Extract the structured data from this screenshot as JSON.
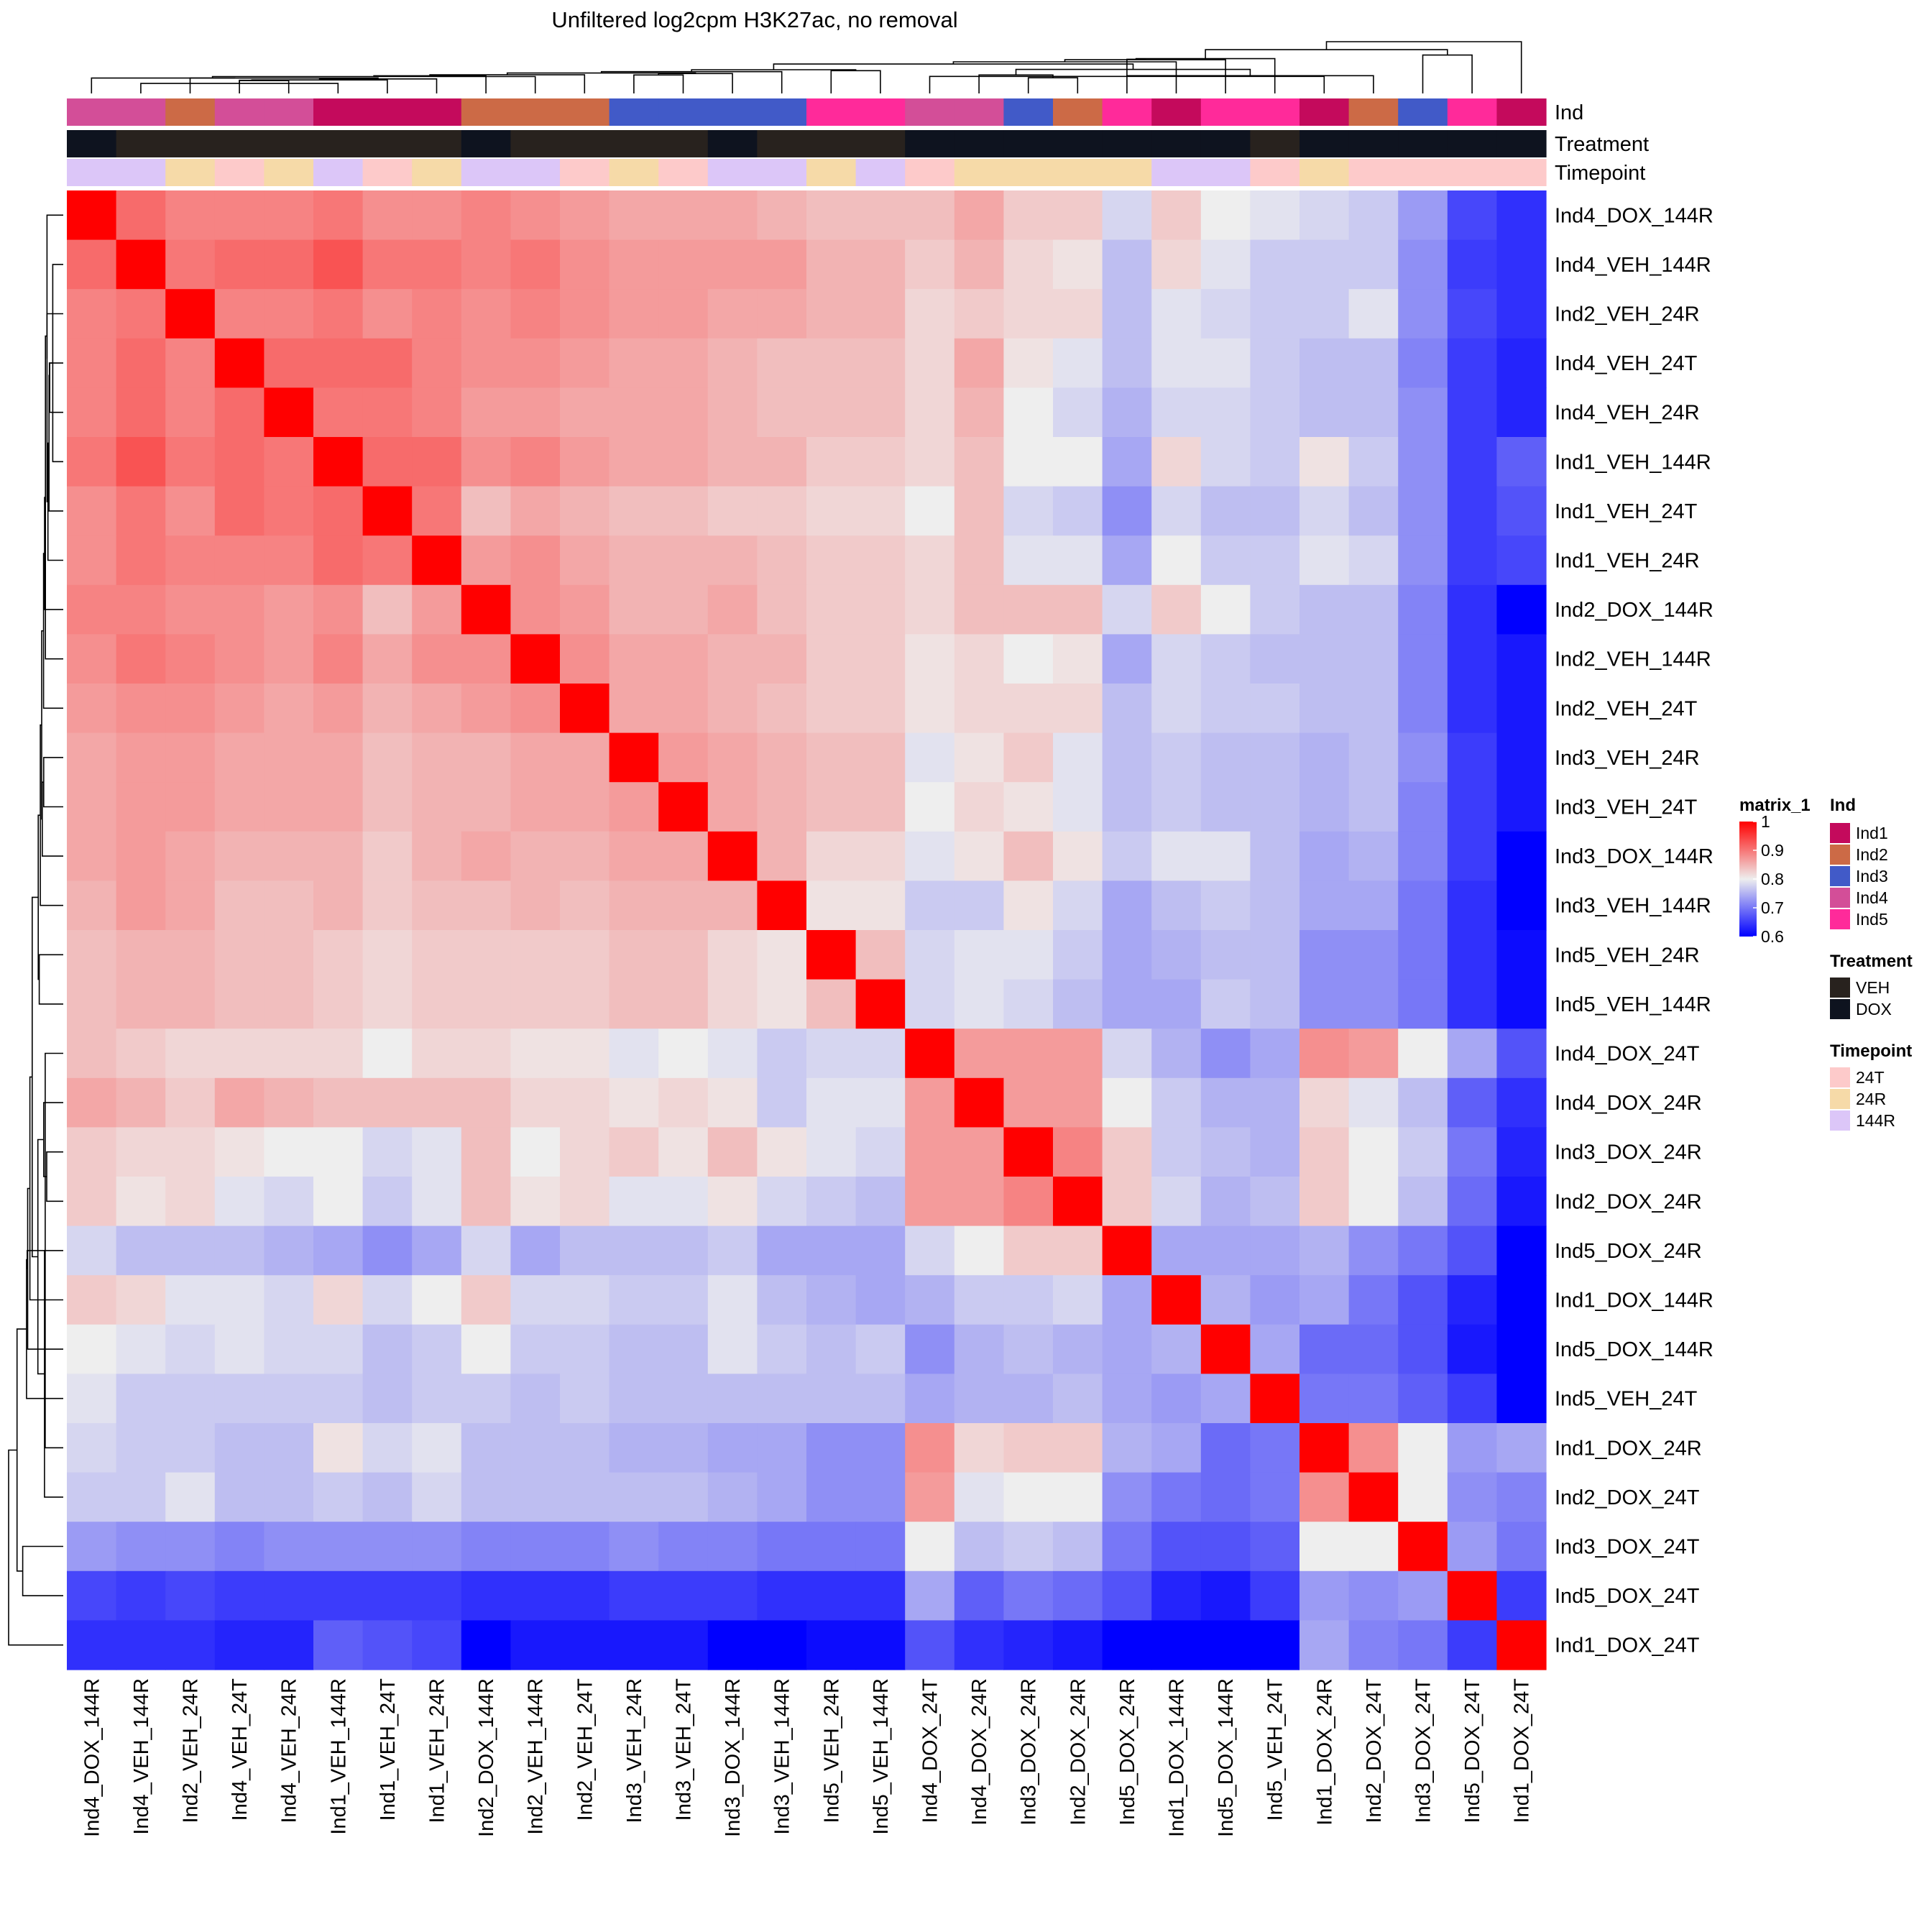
{
  "chart_data": {
    "type": "heatmap",
    "title": "Unfiltered log2cpm H3K27ac, no removal",
    "labels": [
      "Ind4_DOX_144R",
      "Ind4_VEH_144R",
      "Ind2_VEH_24R",
      "Ind4_VEH_24T",
      "Ind4_VEH_24R",
      "Ind1_VEH_144R",
      "Ind1_VEH_24T",
      "Ind1_VEH_24R",
      "Ind2_DOX_144R",
      "Ind2_VEH_144R",
      "Ind2_VEH_24T",
      "Ind3_VEH_24R",
      "Ind3_VEH_24T",
      "Ind3_DOX_144R",
      "Ind3_VEH_144R",
      "Ind5_VEH_24R",
      "Ind5_VEH_144R",
      "Ind4_DOX_24T",
      "Ind4_DOX_24R",
      "Ind3_DOX_24R",
      "Ind2_DOX_24R",
      "Ind5_DOX_24R",
      "Ind1_DOX_144R",
      "Ind5_DOX_144R",
      "Ind5_VEH_24T",
      "Ind1_DOX_24R",
      "Ind2_DOX_24T",
      "Ind3_DOX_24T",
      "Ind5_DOX_24T",
      "Ind1_DOX_24T"
    ],
    "annotation_tracks": [
      "Ind",
      "Treatment",
      "Timepoint"
    ],
    "annotations": {
      "Ind": [
        "Ind4",
        "Ind4",
        "Ind2",
        "Ind4",
        "Ind4",
        "Ind1",
        "Ind1",
        "Ind1",
        "Ind2",
        "Ind2",
        "Ind2",
        "Ind3",
        "Ind3",
        "Ind3",
        "Ind3",
        "Ind5",
        "Ind5",
        "Ind4",
        "Ind4",
        "Ind3",
        "Ind2",
        "Ind5",
        "Ind1",
        "Ind5",
        "Ind5",
        "Ind1",
        "Ind2",
        "Ind3",
        "Ind5",
        "Ind1"
      ],
      "Treatment": [
        "DOX",
        "VEH",
        "VEH",
        "VEH",
        "VEH",
        "VEH",
        "VEH",
        "VEH",
        "DOX",
        "VEH",
        "VEH",
        "VEH",
        "VEH",
        "DOX",
        "VEH",
        "VEH",
        "VEH",
        "DOX",
        "DOX",
        "DOX",
        "DOX",
        "DOX",
        "DOX",
        "DOX",
        "VEH",
        "DOX",
        "DOX",
        "DOX",
        "DOX",
        "DOX"
      ],
      "Timepoint": [
        "144R",
        "144R",
        "24R",
        "24T",
        "24R",
        "144R",
        "24T",
        "24R",
        "144R",
        "144R",
        "24T",
        "24R",
        "24T",
        "144R",
        "144R",
        "24R",
        "144R",
        "24T",
        "24R",
        "24R",
        "24R",
        "24R",
        "144R",
        "144R",
        "24T",
        "24R",
        "24T",
        "24T",
        "24T",
        "24T"
      ]
    },
    "legends": {
      "matrix": {
        "title": "matrix_1",
        "ticks": [
          "1",
          "0.9",
          "0.8",
          "0.7",
          "0.6"
        ],
        "range": [
          0.6,
          1.0
        ]
      },
      "Ind": {
        "title": "Ind",
        "items": [
          {
            "label": "Ind1",
            "color": "#C40A5C"
          },
          {
            "label": "Ind2",
            "color": "#CC6A46"
          },
          {
            "label": "Ind3",
            "color": "#415AC8"
          },
          {
            "label": "Ind4",
            "color": "#D34E98"
          },
          {
            "label": "Ind5",
            "color": "#FF2A9A"
          }
        ]
      },
      "Treatment": {
        "title": "Treatment",
        "items": [
          {
            "label": "VEH",
            "color": "#28221E"
          },
          {
            "label": "DOX",
            "color": "#0E131F"
          }
        ]
      },
      "Timepoint": {
        "title": "Timepoint",
        "items": [
          {
            "label": "24T",
            "color": "#FDCACA"
          },
          {
            "label": "24R",
            "color": "#F6DAA8"
          },
          {
            "label": "144R",
            "color": "#DCC6F8"
          }
        ]
      }
    },
    "color_scale": {
      "low": "#0000FF",
      "mid": "#EEEEEE",
      "high": "#FF0000",
      "low_value": 0.6,
      "mid_value": 0.8,
      "high_value": 1.0
    },
    "values": [
      [
        1.0,
        0.91,
        0.89,
        0.89,
        0.89,
        0.9,
        0.88,
        0.88,
        0.89,
        0.88,
        0.87,
        0.86,
        0.86,
        0.86,
        0.85,
        0.84,
        0.84,
        0.84,
        0.86,
        0.83,
        0.83,
        0.78,
        0.83,
        0.8,
        0.79,
        0.78,
        0.77,
        0.73,
        0.66,
        0.64
      ],
      [
        0.91,
        1.0,
        0.9,
        0.91,
        0.91,
        0.93,
        0.9,
        0.9,
        0.89,
        0.9,
        0.88,
        0.87,
        0.87,
        0.87,
        0.87,
        0.85,
        0.85,
        0.83,
        0.85,
        0.82,
        0.81,
        0.76,
        0.82,
        0.79,
        0.77,
        0.77,
        0.77,
        0.72,
        0.65,
        0.64
      ],
      [
        0.89,
        0.9,
        1.0,
        0.89,
        0.89,
        0.9,
        0.88,
        0.89,
        0.88,
        0.89,
        0.88,
        0.87,
        0.87,
        0.86,
        0.86,
        0.85,
        0.85,
        0.82,
        0.83,
        0.82,
        0.82,
        0.76,
        0.79,
        0.78,
        0.77,
        0.77,
        0.79,
        0.72,
        0.66,
        0.64
      ],
      [
        0.89,
        0.91,
        0.89,
        1.0,
        0.91,
        0.91,
        0.91,
        0.89,
        0.88,
        0.88,
        0.87,
        0.86,
        0.86,
        0.85,
        0.84,
        0.84,
        0.84,
        0.82,
        0.86,
        0.81,
        0.79,
        0.76,
        0.79,
        0.79,
        0.77,
        0.76,
        0.76,
        0.71,
        0.65,
        0.63
      ],
      [
        0.89,
        0.91,
        0.89,
        0.91,
        1.0,
        0.9,
        0.9,
        0.89,
        0.87,
        0.87,
        0.86,
        0.86,
        0.86,
        0.85,
        0.84,
        0.84,
        0.84,
        0.82,
        0.85,
        0.8,
        0.78,
        0.75,
        0.78,
        0.78,
        0.77,
        0.76,
        0.76,
        0.72,
        0.65,
        0.63
      ],
      [
        0.9,
        0.93,
        0.9,
        0.91,
        0.9,
        1.0,
        0.91,
        0.91,
        0.88,
        0.89,
        0.87,
        0.86,
        0.86,
        0.85,
        0.85,
        0.83,
        0.83,
        0.82,
        0.84,
        0.8,
        0.8,
        0.74,
        0.82,
        0.78,
        0.77,
        0.81,
        0.77,
        0.72,
        0.65,
        0.68
      ],
      [
        0.88,
        0.9,
        0.88,
        0.91,
        0.9,
        0.91,
        1.0,
        0.9,
        0.84,
        0.86,
        0.85,
        0.84,
        0.84,
        0.83,
        0.83,
        0.82,
        0.82,
        0.8,
        0.84,
        0.78,
        0.77,
        0.72,
        0.78,
        0.76,
        0.76,
        0.78,
        0.76,
        0.72,
        0.65,
        0.67
      ],
      [
        0.88,
        0.9,
        0.89,
        0.89,
        0.89,
        0.91,
        0.9,
        1.0,
        0.87,
        0.88,
        0.86,
        0.85,
        0.85,
        0.85,
        0.84,
        0.83,
        0.83,
        0.82,
        0.84,
        0.79,
        0.79,
        0.74,
        0.8,
        0.77,
        0.77,
        0.79,
        0.78,
        0.72,
        0.65,
        0.66
      ],
      [
        0.89,
        0.89,
        0.88,
        0.88,
        0.87,
        0.88,
        0.84,
        0.87,
        1.0,
        0.88,
        0.87,
        0.85,
        0.85,
        0.86,
        0.84,
        0.83,
        0.83,
        0.82,
        0.84,
        0.84,
        0.84,
        0.78,
        0.83,
        0.8,
        0.77,
        0.76,
        0.76,
        0.71,
        0.64,
        0.6
      ],
      [
        0.88,
        0.9,
        0.89,
        0.88,
        0.87,
        0.89,
        0.86,
        0.88,
        0.88,
        1.0,
        0.88,
        0.86,
        0.86,
        0.85,
        0.85,
        0.83,
        0.83,
        0.81,
        0.82,
        0.8,
        0.81,
        0.74,
        0.78,
        0.77,
        0.76,
        0.76,
        0.76,
        0.71,
        0.64,
        0.62
      ],
      [
        0.87,
        0.88,
        0.88,
        0.87,
        0.86,
        0.87,
        0.85,
        0.86,
        0.87,
        0.88,
        1.0,
        0.86,
        0.86,
        0.85,
        0.84,
        0.83,
        0.83,
        0.81,
        0.82,
        0.82,
        0.82,
        0.76,
        0.78,
        0.77,
        0.77,
        0.76,
        0.76,
        0.71,
        0.64,
        0.62
      ],
      [
        0.86,
        0.87,
        0.87,
        0.86,
        0.86,
        0.86,
        0.84,
        0.85,
        0.85,
        0.86,
        0.86,
        1.0,
        0.87,
        0.86,
        0.85,
        0.84,
        0.84,
        0.79,
        0.81,
        0.83,
        0.79,
        0.76,
        0.77,
        0.76,
        0.76,
        0.75,
        0.76,
        0.72,
        0.65,
        0.62
      ],
      [
        0.86,
        0.87,
        0.87,
        0.86,
        0.86,
        0.86,
        0.84,
        0.85,
        0.85,
        0.86,
        0.86,
        0.87,
        1.0,
        0.86,
        0.85,
        0.84,
        0.84,
        0.8,
        0.82,
        0.81,
        0.79,
        0.76,
        0.77,
        0.76,
        0.76,
        0.75,
        0.76,
        0.71,
        0.65,
        0.62
      ],
      [
        0.86,
        0.87,
        0.86,
        0.85,
        0.85,
        0.85,
        0.83,
        0.85,
        0.86,
        0.85,
        0.85,
        0.86,
        0.86,
        1.0,
        0.85,
        0.82,
        0.82,
        0.79,
        0.81,
        0.84,
        0.81,
        0.77,
        0.79,
        0.79,
        0.76,
        0.74,
        0.75,
        0.71,
        0.65,
        0.6
      ],
      [
        0.85,
        0.87,
        0.86,
        0.84,
        0.84,
        0.85,
        0.83,
        0.84,
        0.84,
        0.85,
        0.84,
        0.85,
        0.85,
        0.85,
        1.0,
        0.81,
        0.81,
        0.77,
        0.77,
        0.81,
        0.78,
        0.74,
        0.76,
        0.77,
        0.76,
        0.74,
        0.74,
        0.7,
        0.64,
        0.6
      ],
      [
        0.84,
        0.85,
        0.85,
        0.84,
        0.84,
        0.83,
        0.82,
        0.83,
        0.83,
        0.83,
        0.83,
        0.84,
        0.84,
        0.82,
        0.81,
        1.0,
        0.84,
        0.78,
        0.79,
        0.79,
        0.77,
        0.74,
        0.75,
        0.76,
        0.76,
        0.72,
        0.72,
        0.7,
        0.64,
        0.61
      ],
      [
        0.84,
        0.85,
        0.85,
        0.84,
        0.84,
        0.83,
        0.82,
        0.83,
        0.83,
        0.83,
        0.83,
        0.84,
        0.84,
        0.82,
        0.81,
        0.84,
        1.0,
        0.78,
        0.79,
        0.78,
        0.76,
        0.74,
        0.74,
        0.77,
        0.76,
        0.72,
        0.72,
        0.7,
        0.64,
        0.61
      ],
      [
        0.84,
        0.83,
        0.82,
        0.82,
        0.82,
        0.82,
        0.8,
        0.82,
        0.82,
        0.81,
        0.81,
        0.79,
        0.8,
        0.79,
        0.77,
        0.78,
        0.78,
        1.0,
        0.87,
        0.87,
        0.87,
        0.78,
        0.75,
        0.72,
        0.74,
        0.88,
        0.87,
        0.8,
        0.74,
        0.67
      ],
      [
        0.86,
        0.85,
        0.83,
        0.86,
        0.85,
        0.84,
        0.84,
        0.84,
        0.84,
        0.82,
        0.82,
        0.81,
        0.82,
        0.81,
        0.77,
        0.79,
        0.79,
        0.87,
        1.0,
        0.87,
        0.87,
        0.8,
        0.77,
        0.75,
        0.75,
        0.82,
        0.79,
        0.76,
        0.68,
        0.64
      ],
      [
        0.83,
        0.82,
        0.82,
        0.81,
        0.8,
        0.8,
        0.78,
        0.79,
        0.84,
        0.8,
        0.82,
        0.83,
        0.81,
        0.84,
        0.81,
        0.79,
        0.78,
        0.87,
        0.87,
        1.0,
        0.89,
        0.83,
        0.77,
        0.76,
        0.75,
        0.83,
        0.8,
        0.77,
        0.7,
        0.63
      ],
      [
        0.83,
        0.81,
        0.82,
        0.79,
        0.78,
        0.8,
        0.77,
        0.79,
        0.84,
        0.81,
        0.82,
        0.79,
        0.79,
        0.81,
        0.78,
        0.77,
        0.76,
        0.87,
        0.87,
        0.89,
        1.0,
        0.83,
        0.78,
        0.75,
        0.76,
        0.83,
        0.8,
        0.76,
        0.69,
        0.62
      ],
      [
        0.78,
        0.76,
        0.76,
        0.76,
        0.75,
        0.74,
        0.72,
        0.74,
        0.78,
        0.74,
        0.76,
        0.76,
        0.76,
        0.77,
        0.74,
        0.74,
        0.74,
        0.78,
        0.8,
        0.83,
        0.83,
        1.0,
        0.74,
        0.74,
        0.74,
        0.75,
        0.72,
        0.7,
        0.67,
        0.6
      ],
      [
        0.83,
        0.82,
        0.79,
        0.79,
        0.78,
        0.82,
        0.78,
        0.8,
        0.83,
        0.78,
        0.78,
        0.77,
        0.77,
        0.79,
        0.76,
        0.75,
        0.74,
        0.75,
        0.77,
        0.77,
        0.78,
        0.74,
        1.0,
        0.75,
        0.73,
        0.74,
        0.7,
        0.67,
        0.63,
        0.6
      ],
      [
        0.8,
        0.79,
        0.78,
        0.79,
        0.78,
        0.78,
        0.76,
        0.77,
        0.8,
        0.77,
        0.77,
        0.76,
        0.76,
        0.79,
        0.77,
        0.76,
        0.77,
        0.72,
        0.75,
        0.76,
        0.75,
        0.74,
        0.75,
        1.0,
        0.74,
        0.69,
        0.69,
        0.67,
        0.62,
        0.6
      ],
      [
        0.79,
        0.77,
        0.77,
        0.77,
        0.77,
        0.77,
        0.76,
        0.77,
        0.77,
        0.76,
        0.77,
        0.76,
        0.76,
        0.76,
        0.76,
        0.76,
        0.76,
        0.74,
        0.75,
        0.75,
        0.76,
        0.74,
        0.73,
        0.74,
        1.0,
        0.7,
        0.7,
        0.68,
        0.65,
        0.6
      ],
      [
        0.78,
        0.77,
        0.77,
        0.76,
        0.76,
        0.81,
        0.78,
        0.79,
        0.76,
        0.76,
        0.76,
        0.75,
        0.75,
        0.74,
        0.74,
        0.72,
        0.72,
        0.88,
        0.82,
        0.83,
        0.83,
        0.75,
        0.74,
        0.69,
        0.7,
        1.0,
        0.88,
        0.8,
        0.73,
        0.74
      ],
      [
        0.77,
        0.77,
        0.79,
        0.76,
        0.76,
        0.77,
        0.76,
        0.78,
        0.76,
        0.76,
        0.76,
        0.76,
        0.76,
        0.75,
        0.74,
        0.72,
        0.72,
        0.87,
        0.79,
        0.8,
        0.8,
        0.72,
        0.7,
        0.69,
        0.7,
        0.88,
        1.0,
        0.8,
        0.72,
        0.71
      ],
      [
        0.73,
        0.72,
        0.72,
        0.71,
        0.72,
        0.72,
        0.72,
        0.72,
        0.71,
        0.71,
        0.71,
        0.72,
        0.71,
        0.71,
        0.7,
        0.7,
        0.7,
        0.8,
        0.76,
        0.77,
        0.76,
        0.7,
        0.67,
        0.67,
        0.68,
        0.8,
        0.8,
        1.0,
        0.73,
        0.7
      ],
      [
        0.66,
        0.65,
        0.66,
        0.65,
        0.65,
        0.65,
        0.65,
        0.65,
        0.64,
        0.64,
        0.64,
        0.65,
        0.65,
        0.65,
        0.64,
        0.64,
        0.64,
        0.74,
        0.68,
        0.7,
        0.69,
        0.67,
        0.63,
        0.62,
        0.65,
        0.73,
        0.72,
        0.73,
        1.0,
        0.65
      ],
      [
        0.64,
        0.64,
        0.64,
        0.63,
        0.63,
        0.68,
        0.67,
        0.66,
        0.6,
        0.62,
        0.62,
        0.62,
        0.62,
        0.6,
        0.6,
        0.61,
        0.61,
        0.67,
        0.64,
        0.63,
        0.62,
        0.6,
        0.6,
        0.6,
        0.6,
        0.74,
        0.71,
        0.7,
        0.65,
        1.0
      ]
    ]
  }
}
